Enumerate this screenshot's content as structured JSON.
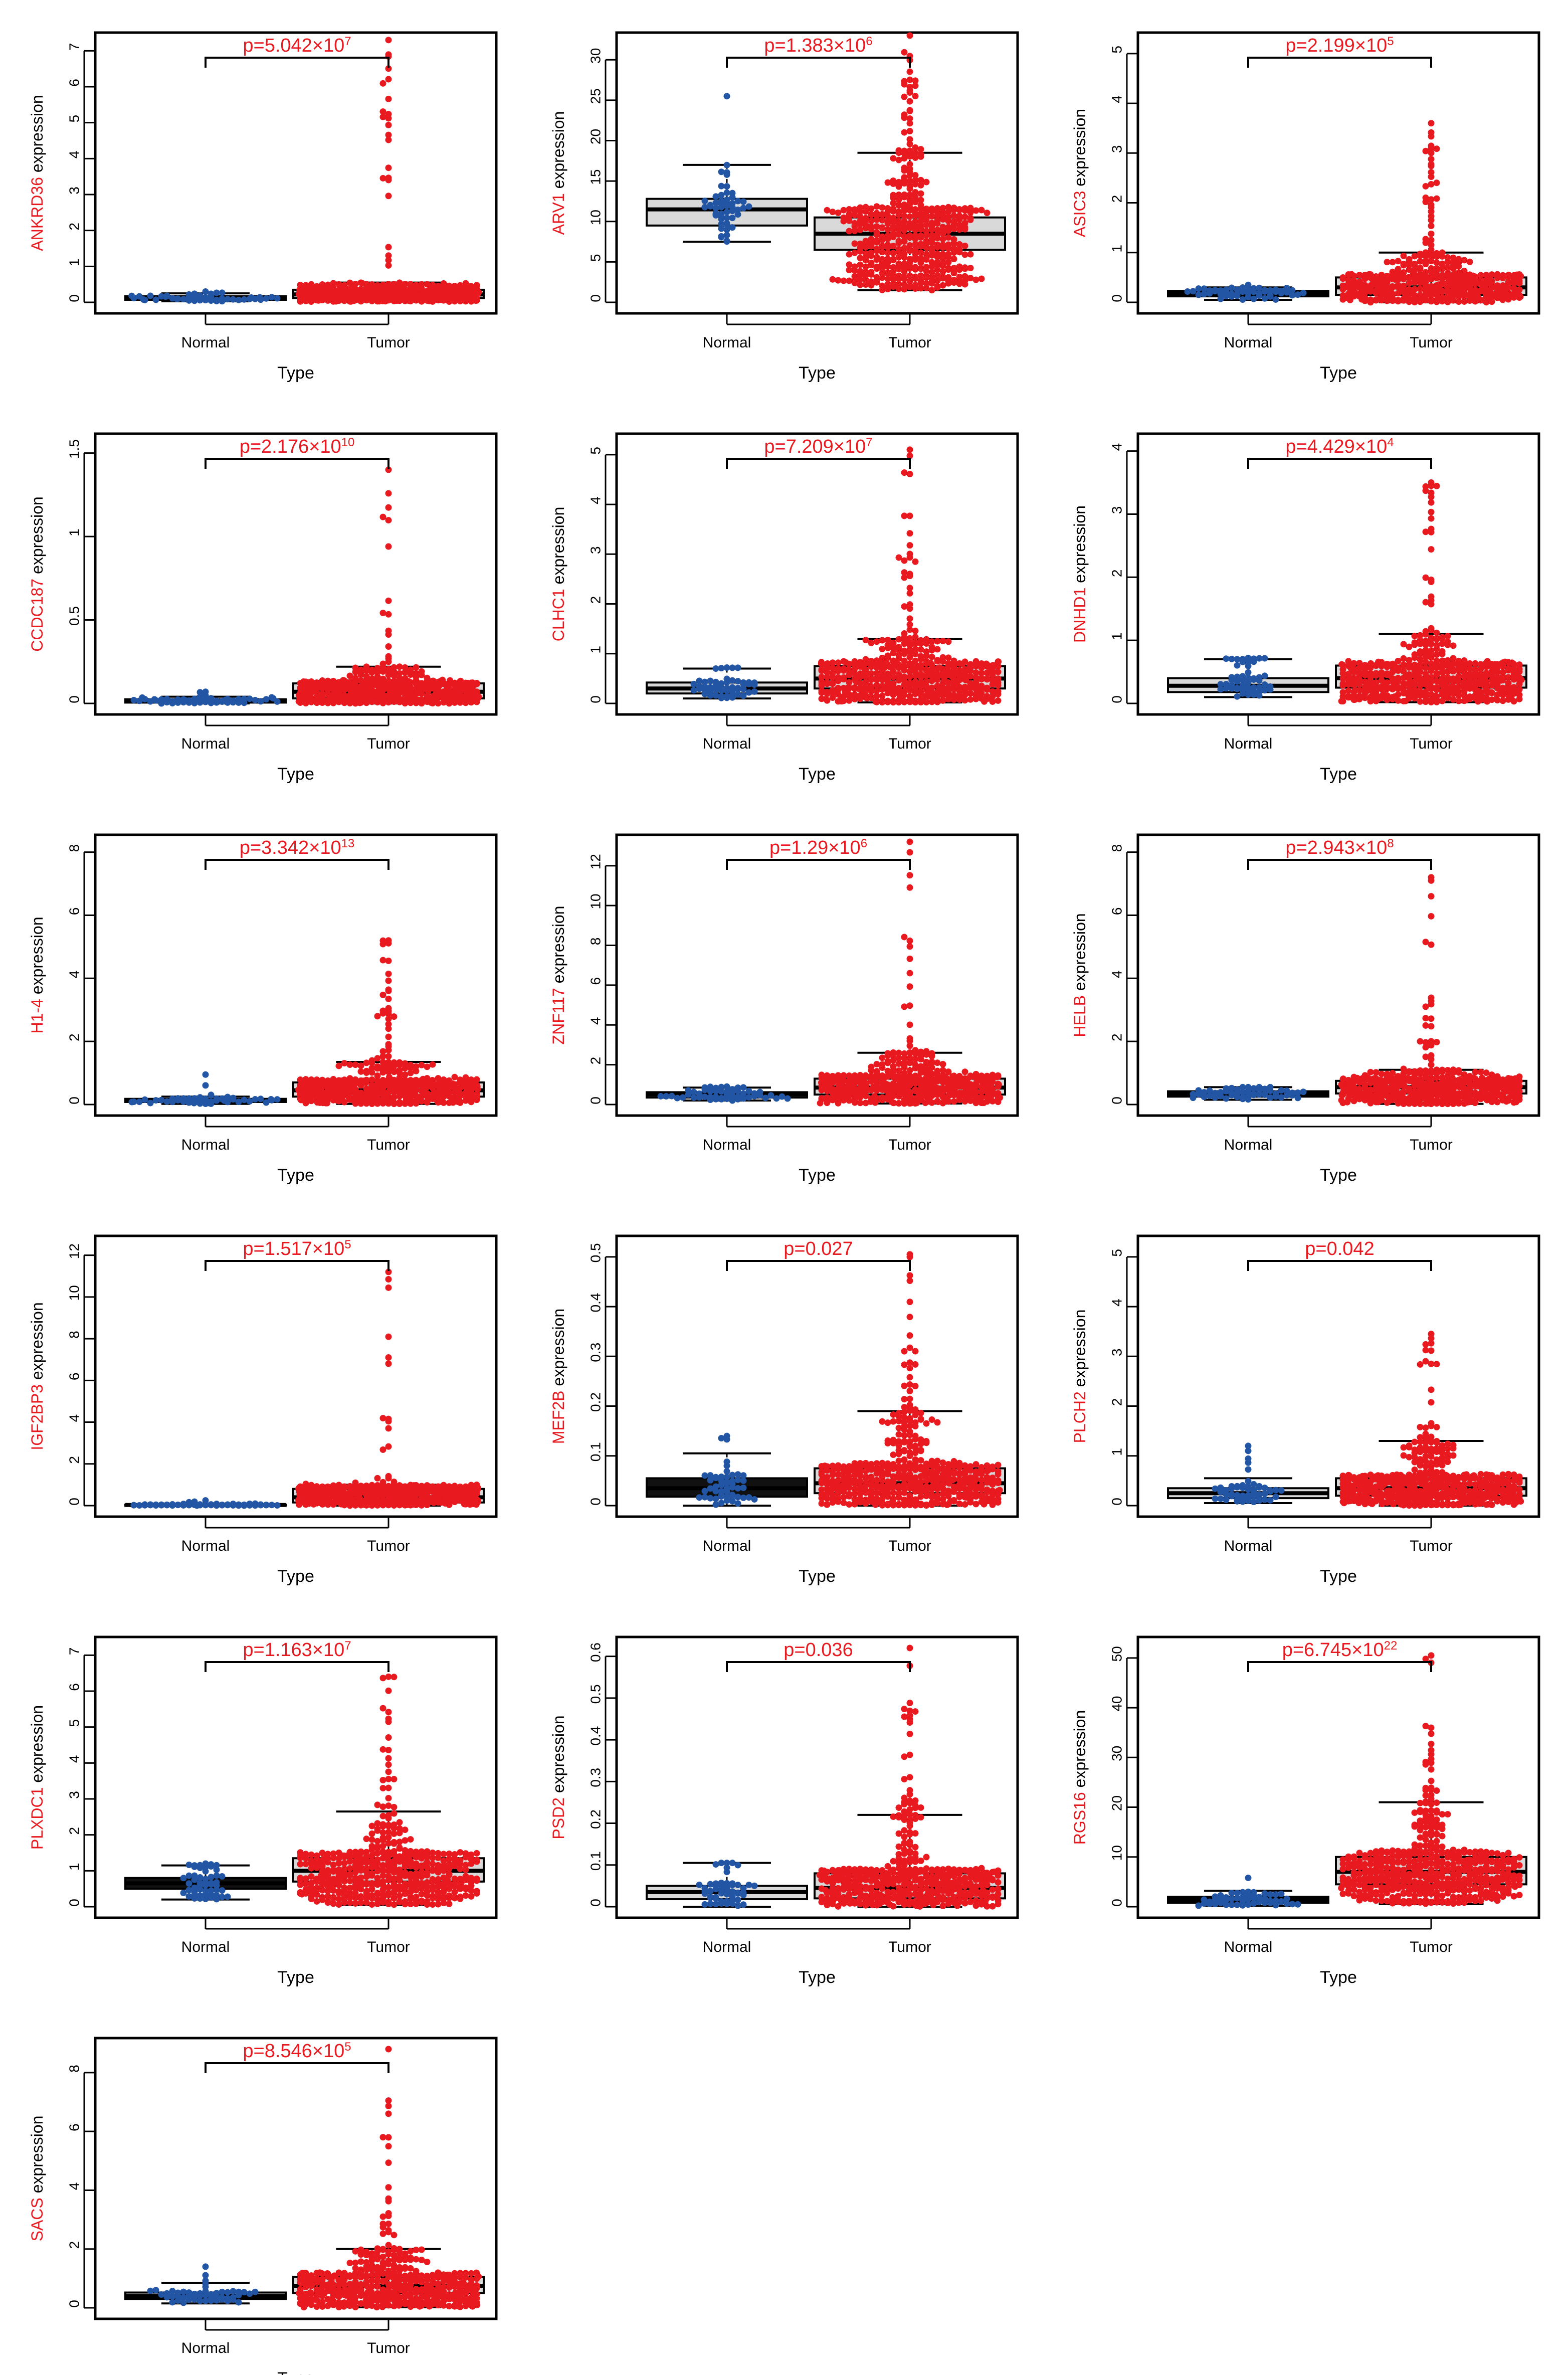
{
  "colors": {
    "normal": "#2255a4",
    "tumor": "#e8191f",
    "red_text": "#e8191f",
    "axis": "#000000"
  },
  "chart_data": [
    {
      "type": "box-swarm",
      "gene": "ANKRD36",
      "ylabel": "expression",
      "xlabel": "Type",
      "categories": [
        "Normal",
        "Tumor"
      ],
      "pvalue": {
        "mantissa": "p=5.042×10",
        "exp": "7"
      },
      "yticks": [
        0,
        1,
        2,
        3,
        4,
        5,
        6,
        7
      ],
      "ylim": [
        0,
        7.2
      ],
      "normal": {
        "q1": 0.07,
        "median": 0.12,
        "q3": 0.17,
        "whisker_low": 0.03,
        "whisker_high": 0.25,
        "max": 0.3
      },
      "tumor": {
        "q1": 0.12,
        "median": 0.22,
        "q3": 0.35,
        "whisker_low": 0.02,
        "whisker_high": 0.55,
        "max": 7.3
      },
      "n_normal": 52,
      "n_tumor": 480
    },
    {
      "type": "box-swarm",
      "gene": "ARV1",
      "ylabel": "expression",
      "xlabel": "Type",
      "categories": [
        "Normal",
        "Tumor"
      ],
      "pvalue": {
        "mantissa": "p=1.383×10",
        "exp": "6"
      },
      "yticks": [
        0,
        5,
        10,
        15,
        20,
        25,
        30
      ],
      "ylim": [
        0,
        32
      ],
      "normal": {
        "q1": 9.5,
        "median": 11.5,
        "q3": 12.8,
        "whisker_low": 7.5,
        "whisker_high": 17,
        "max": 25.5
      },
      "tumor": {
        "q1": 6.5,
        "median": 8.5,
        "q3": 10.5,
        "whisker_low": 1.5,
        "whisker_high": 18.5,
        "max": 33
      },
      "n_normal": 52,
      "n_tumor": 480
    },
    {
      "type": "box-swarm",
      "gene": "ASIC3",
      "ylabel": "expression",
      "xlabel": "Type",
      "categories": [
        "Normal",
        "Tumor"
      ],
      "pvalue": {
        "mantissa": "p=2.199×10",
        "exp": "5"
      },
      "yticks": [
        0,
        1,
        2,
        3,
        4,
        5
      ],
      "ylim": [
        0,
        5.2
      ],
      "normal": {
        "q1": 0.12,
        "median": 0.18,
        "q3": 0.23,
        "whisker_low": 0.05,
        "whisker_high": 0.3,
        "max": 0.35
      },
      "tumor": {
        "q1": 0.15,
        "median": 0.3,
        "q3": 0.5,
        "whisker_low": 0.0,
        "whisker_high": 1.0,
        "max": 3.6
      },
      "n_normal": 52,
      "n_tumor": 480
    },
    {
      "type": "box-swarm",
      "gene": "CCDC187",
      "ylabel": "expression",
      "xlabel": "Type",
      "categories": [
        "Normal",
        "Tumor"
      ],
      "pvalue": {
        "mantissa": "p=2.176×10",
        "exp": "10"
      },
      "yticks": [
        0.0,
        0.5,
        1.0,
        1.5
      ],
      "ylim": [
        0,
        1.55
      ],
      "normal": {
        "q1": 0.005,
        "median": 0.015,
        "q3": 0.025,
        "whisker_low": 0.0,
        "whisker_high": 0.04,
        "max": 0.07
      },
      "tumor": {
        "q1": 0.03,
        "median": 0.07,
        "q3": 0.12,
        "whisker_low": 0.0,
        "whisker_high": 0.22,
        "max": 1.4
      },
      "n_normal": 52,
      "n_tumor": 480
    },
    {
      "type": "box-swarm",
      "gene": "CLHC1",
      "ylabel": "expression",
      "xlabel": "Type",
      "categories": [
        "Normal",
        "Tumor"
      ],
      "pvalue": {
        "mantissa": "p=7.209×10",
        "exp": "7"
      },
      "yticks": [
        0,
        1,
        2,
        3,
        4,
        5
      ],
      "ylim": [
        0,
        5.2
      ],
      "normal": {
        "q1": 0.2,
        "median": 0.3,
        "q3": 0.42,
        "whisker_low": 0.1,
        "whisker_high": 0.7,
        "max": 0.72
      },
      "tumor": {
        "q1": 0.3,
        "median": 0.5,
        "q3": 0.75,
        "whisker_low": 0.02,
        "whisker_high": 1.3,
        "max": 5.1
      },
      "n_normal": 52,
      "n_tumor": 480
    },
    {
      "type": "box-swarm",
      "gene": "DNHD1",
      "ylabel": "expression",
      "xlabel": "Type",
      "categories": [
        "Normal",
        "Tumor"
      ],
      "pvalue": {
        "mantissa": "p=4.429×10",
        "exp": "4"
      },
      "yticks": [
        0,
        1,
        2,
        3,
        4
      ],
      "ylim": [
        0,
        4.1
      ],
      "normal": {
        "q1": 0.18,
        "median": 0.28,
        "q3": 0.4,
        "whisker_low": 0.1,
        "whisker_high": 0.7,
        "max": 0.72
      },
      "tumor": {
        "q1": 0.25,
        "median": 0.4,
        "q3": 0.6,
        "whisker_low": 0.02,
        "whisker_high": 1.1,
        "max": 3.5
      },
      "n_normal": 52,
      "n_tumor": 480
    },
    {
      "type": "box-swarm",
      "gene": "H1-4",
      "ylabel": "expression",
      "xlabel": "Type",
      "categories": [
        "Normal",
        "Tumor"
      ],
      "pvalue": {
        "mantissa": "p=3.342×10",
        "exp": "13"
      },
      "yticks": [
        0,
        2,
        4,
        6,
        8
      ],
      "ylim": [
        0,
        8.2
      ],
      "normal": {
        "q1": 0.08,
        "median": 0.12,
        "q3": 0.18,
        "whisker_low": 0.02,
        "whisker_high": 0.25,
        "max": 0.95
      },
      "tumor": {
        "q1": 0.25,
        "median": 0.45,
        "q3": 0.7,
        "whisker_low": 0.02,
        "whisker_high": 1.35,
        "max": 5.2
      },
      "n_normal": 52,
      "n_tumor": 480
    },
    {
      "type": "box-swarm",
      "gene": "ZNF117",
      "ylabel": "expression",
      "xlabel": "Type",
      "categories": [
        "Normal",
        "Tumor"
      ],
      "pvalue": {
        "mantissa": "p=1.29×10",
        "exp": "6"
      },
      "yticks": [
        0,
        2,
        4,
        6,
        8,
        10,
        12
      ],
      "ylim": [
        0,
        13
      ],
      "normal": {
        "q1": 0.35,
        "median": 0.5,
        "q3": 0.62,
        "whisker_low": 0.2,
        "whisker_high": 0.85,
        "max": 0.9
      },
      "tumor": {
        "q1": 0.5,
        "median": 0.85,
        "q3": 1.3,
        "whisker_low": 0.05,
        "whisker_high": 2.6,
        "max": 13.2
      },
      "n_normal": 52,
      "n_tumor": 480
    },
    {
      "type": "box-swarm",
      "gene": "HELB",
      "ylabel": "expression",
      "xlabel": "Type",
      "categories": [
        "Normal",
        "Tumor"
      ],
      "pvalue": {
        "mantissa": "p=2.943×10",
        "exp": "8"
      },
      "yticks": [
        0,
        2,
        4,
        6,
        8
      ],
      "ylim": [
        0,
        8.2
      ],
      "normal": {
        "q1": 0.25,
        "median": 0.33,
        "q3": 0.42,
        "whisker_low": 0.15,
        "whisker_high": 0.55,
        "max": 0.55
      },
      "tumor": {
        "q1": 0.35,
        "median": 0.55,
        "q3": 0.75,
        "whisker_low": 0.02,
        "whisker_high": 1.1,
        "max": 7.2
      },
      "n_normal": 52,
      "n_tumor": 480
    },
    {
      "type": "box-swarm",
      "gene": "IGF2BP3",
      "ylabel": "expression",
      "xlabel": "Type",
      "categories": [
        "Normal",
        "Tumor"
      ],
      "pvalue": {
        "mantissa": "p=1.517×10",
        "exp": "5"
      },
      "yticks": [
        0,
        2,
        4,
        6,
        8,
        10,
        12
      ],
      "ylim": [
        0,
        12.4
      ],
      "normal": {
        "q1": 0.01,
        "median": 0.03,
        "q3": 0.05,
        "whisker_low": 0.0,
        "whisker_high": 0.1,
        "max": 0.25
      },
      "tumor": {
        "q1": 0.15,
        "median": 0.4,
        "q3": 0.8,
        "whisker_low": 0.0,
        "whisker_high": 1.0,
        "max": 11.2
      },
      "n_normal": 52,
      "n_tumor": 480
    },
    {
      "type": "box-swarm",
      "gene": "MEF2B",
      "ylabel": "expression",
      "xlabel": "Type",
      "categories": [
        "Normal",
        "Tumor"
      ],
      "pvalue": {
        "mantissa": "p=0.027",
        "exp": ""
      },
      "yticks": [
        0.0,
        0.1,
        0.2,
        0.3,
        0.4,
        0.5
      ],
      "ylim": [
        0,
        0.52
      ],
      "normal": {
        "q1": 0.018,
        "median": 0.035,
        "q3": 0.055,
        "whisker_low": 0.0,
        "whisker_high": 0.105,
        "max": 0.14
      },
      "tumor": {
        "q1": 0.025,
        "median": 0.045,
        "q3": 0.075,
        "whisker_low": 0.0,
        "whisker_high": 0.19,
        "max": 0.505
      },
      "n_normal": 52,
      "n_tumor": 480
    },
    {
      "type": "box-swarm",
      "gene": "PLCH2",
      "ylabel": "expression",
      "xlabel": "Type",
      "categories": [
        "Normal",
        "Tumor"
      ],
      "pvalue": {
        "mantissa": "p=0.042",
        "exp": ""
      },
      "yticks": [
        0,
        1,
        2,
        3,
        4,
        5
      ],
      "ylim": [
        0,
        5.2
      ],
      "normal": {
        "q1": 0.15,
        "median": 0.25,
        "q3": 0.35,
        "whisker_low": 0.05,
        "whisker_high": 0.55,
        "max": 1.2
      },
      "tumor": {
        "q1": 0.2,
        "median": 0.35,
        "q3": 0.55,
        "whisker_low": 0.0,
        "whisker_high": 1.3,
        "max": 3.45
      },
      "n_normal": 52,
      "n_tumor": 480
    },
    {
      "type": "box-swarm",
      "gene": "PLXDC1",
      "ylabel": "expression",
      "xlabel": "Type",
      "categories": [
        "Normal",
        "Tumor"
      ],
      "pvalue": {
        "mantissa": "p=1.163×10",
        "exp": "7"
      },
      "yticks": [
        0,
        1,
        2,
        3,
        4,
        5,
        6,
        7
      ],
      "ylim": [
        0,
        7.2
      ],
      "normal": {
        "q1": 0.5,
        "median": 0.65,
        "q3": 0.8,
        "whisker_low": 0.2,
        "whisker_high": 1.15,
        "max": 1.2
      },
      "tumor": {
        "q1": 0.7,
        "median": 1.0,
        "q3": 1.35,
        "whisker_low": 0.05,
        "whisker_high": 2.65,
        "max": 6.4
      },
      "n_normal": 52,
      "n_tumor": 480
    },
    {
      "type": "box-swarm",
      "gene": "PSD2",
      "ylabel": "expression",
      "xlabel": "Type",
      "categories": [
        "Normal",
        "Tumor"
      ],
      "pvalue": {
        "mantissa": "p=0.036",
        "exp": ""
      },
      "yticks": [
        0.0,
        0.1,
        0.2,
        0.3,
        0.4,
        0.5,
        0.6
      ],
      "ylim": [
        0,
        0.62
      ],
      "normal": {
        "q1": 0.018,
        "median": 0.035,
        "q3": 0.05,
        "whisker_low": 0.0,
        "whisker_high": 0.105,
        "max": 0.105
      },
      "tumor": {
        "q1": 0.02,
        "median": 0.045,
        "q3": 0.08,
        "whisker_low": 0.0,
        "whisker_high": 0.22,
        "max": 0.62
      },
      "n_normal": 52,
      "n_tumor": 480
    },
    {
      "type": "box-swarm",
      "gene": "RGS16",
      "ylabel": "expression",
      "xlabel": "Type",
      "categories": [
        "Normal",
        "Tumor"
      ],
      "pvalue": {
        "mantissa": "p=6.745×10",
        "exp": "22"
      },
      "yticks": [
        0,
        10,
        20,
        30,
        40,
        50
      ],
      "ylim": [
        0,
        52
      ],
      "normal": {
        "q1": 0.8,
        "median": 1.4,
        "q3": 2.0,
        "whisker_low": 0.2,
        "whisker_high": 3.2,
        "max": 5.8
      },
      "tumor": {
        "q1": 4.5,
        "median": 7.0,
        "q3": 10.0,
        "whisker_low": 0.5,
        "whisker_high": 21.0,
        "max": 50.5
      },
      "n_normal": 52,
      "n_tumor": 480
    },
    {
      "type": "box-swarm",
      "gene": "SACS",
      "ylabel": "expression",
      "xlabel": "Type",
      "categories": [
        "Normal",
        "Tumor"
      ],
      "pvalue": {
        "mantissa": "p=8.546×10",
        "exp": "5"
      },
      "yticks": [
        0,
        2,
        4,
        6,
        8
      ],
      "ylim": [
        0,
        8.8
      ],
      "normal": {
        "q1": 0.3,
        "median": 0.4,
        "q3": 0.52,
        "whisker_low": 0.15,
        "whisker_high": 0.85,
        "max": 1.4
      },
      "tumor": {
        "q1": 0.5,
        "median": 0.75,
        "q3": 1.05,
        "whisker_low": 0.02,
        "whisker_high": 2.0,
        "max": 8.8
      },
      "n_normal": 52,
      "n_tumor": 480
    }
  ]
}
